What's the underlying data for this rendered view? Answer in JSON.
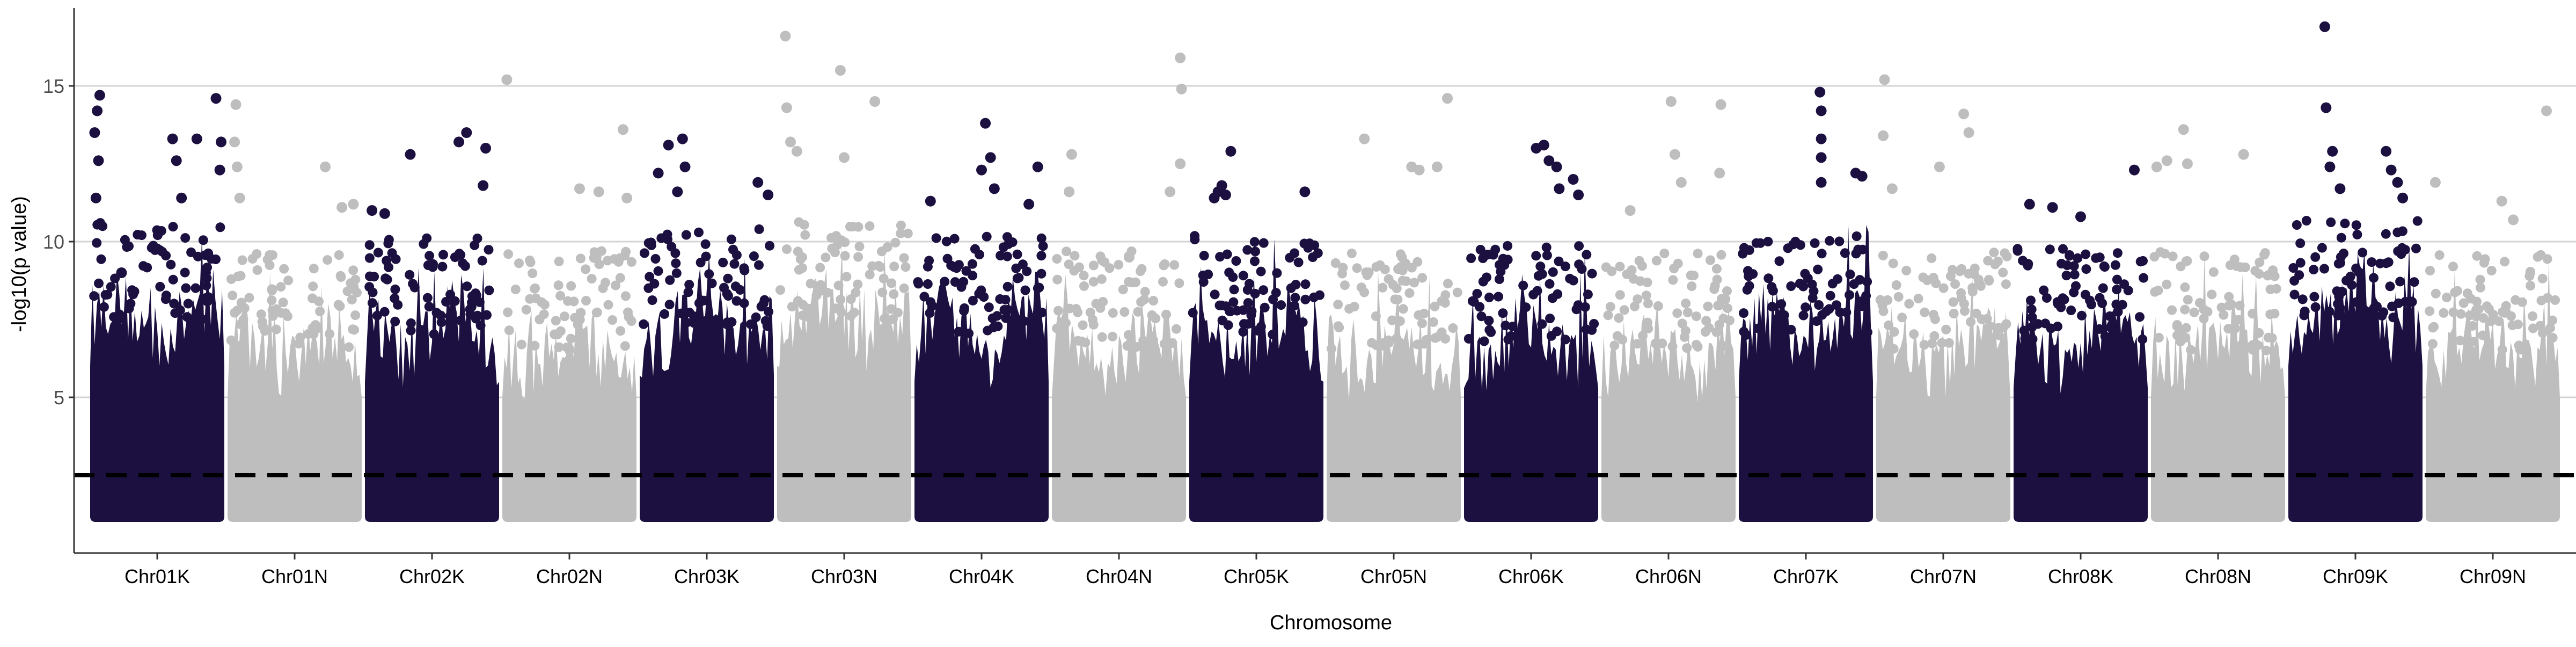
{
  "chart_data": {
    "type": "scatter",
    "subtype": "manhattan",
    "title": "",
    "xlabel": "Chromosome",
    "ylabel": "-log10(p value)",
    "ylim": [
      0,
      17.5
    ],
    "yticks": [
      5,
      10,
      15
    ],
    "grid": {
      "horizontal_major": true,
      "vertical": false
    },
    "threshold": {
      "value": 2.5,
      "style": "dashed",
      "color": "#000000"
    },
    "point_colors": {
      "K": "#1b1040",
      "N": "#bebebe"
    },
    "colors": {
      "grid": "#d4d4d4",
      "axis_text": "#4d4d4d",
      "axis_line": "#333333",
      "background": "#ffffff"
    },
    "categories": [
      "Chr01K",
      "Chr01N",
      "Chr02K",
      "Chr02N",
      "Chr03K",
      "Chr03N",
      "Chr04K",
      "Chr04N",
      "Chr05K",
      "Chr05N",
      "Chr06K",
      "Chr06N",
      "Chr07K",
      "Chr07N",
      "Chr08K",
      "Chr08N",
      "Chr09K",
      "Chr09N"
    ],
    "series": [
      {
        "chromosome": "Chr01K",
        "min_y": 1.0,
        "dense_top": 7.5,
        "outliers": [
          [
            0.01,
            13.5
          ],
          [
            0.03,
            14.2
          ],
          [
            0.05,
            14.7
          ],
          [
            0.04,
            12.6
          ],
          [
            0.02,
            11.4
          ],
          [
            0.22,
            9.0
          ],
          [
            0.62,
            13.3
          ],
          [
            0.65,
            12.6
          ],
          [
            0.69,
            11.4
          ],
          [
            0.81,
            13.3
          ],
          [
            0.96,
            14.6
          ],
          [
            0.99,
            12.3
          ],
          [
            1.0,
            13.2
          ]
        ]
      },
      {
        "chromosome": "Chr01N",
        "min_y": 1.0,
        "dense_top": 6.5,
        "outliers": [
          [
            0.04,
            14.4
          ],
          [
            0.03,
            13.2
          ],
          [
            0.05,
            12.4
          ],
          [
            0.07,
            11.4
          ],
          [
            0.74,
            12.4
          ],
          [
            0.87,
            11.1
          ],
          [
            0.96,
            11.2
          ]
        ]
      },
      {
        "chromosome": "Chr02K",
        "min_y": 1.0,
        "dense_top": 7.0,
        "outliers": [
          [
            0.03,
            11.0
          ],
          [
            0.13,
            10.9
          ],
          [
            0.33,
            12.8
          ],
          [
            0.71,
            13.2
          ],
          [
            0.77,
            13.5
          ],
          [
            0.92,
            13.0
          ],
          [
            0.9,
            11.8
          ]
        ]
      },
      {
        "chromosome": "Chr02N",
        "min_y": 1.0,
        "dense_top": 6.5,
        "outliers": [
          [
            0.01,
            15.2
          ],
          [
            0.58,
            11.7
          ],
          [
            0.73,
            11.6
          ],
          [
            0.92,
            13.6
          ],
          [
            0.95,
            11.4
          ]
        ]
      },
      {
        "chromosome": "Chr03K",
        "min_y": 1.0,
        "dense_top": 7.2,
        "outliers": [
          [
            0.12,
            12.2
          ],
          [
            0.2,
            13.1
          ],
          [
            0.31,
            13.3
          ],
          [
            0.33,
            12.4
          ],
          [
            0.27,
            11.6
          ],
          [
            0.9,
            11.9
          ],
          [
            0.98,
            11.5
          ]
        ]
      },
      {
        "chromosome": "Chr03N",
        "min_y": 1.0,
        "dense_top": 7.5,
        "outliers": [
          [
            0.04,
            16.6
          ],
          [
            0.05,
            14.3
          ],
          [
            0.08,
            13.2
          ],
          [
            0.13,
            12.9
          ],
          [
            0.47,
            15.5
          ],
          [
            0.5,
            12.7
          ],
          [
            0.74,
            14.5
          ]
        ]
      },
      {
        "chromosome": "Chr04K",
        "min_y": 1.0,
        "dense_top": 7.0,
        "outliers": [
          [
            0.1,
            11.3
          ],
          [
            0.5,
            12.3
          ],
          [
            0.53,
            13.8
          ],
          [
            0.57,
            12.7
          ],
          [
            0.6,
            11.7
          ],
          [
            0.87,
            11.2
          ],
          [
            0.94,
            12.4
          ]
        ]
      },
      {
        "chromosome": "Chr04N",
        "min_y": 1.0,
        "dense_top": 6.5,
        "outliers": [
          [
            0.13,
            12.8
          ],
          [
            0.11,
            11.6
          ],
          [
            0.58,
            9.5
          ],
          [
            0.98,
            15.9
          ],
          [
            0.99,
            14.9
          ],
          [
            0.98,
            12.5
          ],
          [
            0.9,
            11.6
          ]
        ]
      },
      {
        "chromosome": "Chr05K",
        "min_y": 1.0,
        "dense_top": 7.0,
        "outliers": [
          [
            0.17,
            11.4
          ],
          [
            0.2,
            11.6
          ],
          [
            0.23,
            11.8
          ],
          [
            0.3,
            12.9
          ],
          [
            0.26,
            11.5
          ],
          [
            0.88,
            11.6
          ]
        ]
      },
      {
        "chromosome": "Chr05N",
        "min_y": 1.0,
        "dense_top": 6.5,
        "outliers": [
          [
            0.27,
            13.3
          ],
          [
            0.64,
            12.4
          ],
          [
            0.7,
            12.3
          ],
          [
            0.84,
            12.4
          ],
          [
            0.92,
            14.6
          ]
        ]
      },
      {
        "chromosome": "Chr06K",
        "min_y": 1.0,
        "dense_top": 6.8,
        "outliers": [
          [
            0.54,
            13.0
          ],
          [
            0.6,
            13.1
          ],
          [
            0.64,
            12.6
          ],
          [
            0.7,
            12.4
          ],
          [
            0.72,
            11.7
          ],
          [
            0.83,
            12.0
          ],
          [
            0.87,
            11.5
          ]
        ]
      },
      {
        "chromosome": "Chr06N",
        "min_y": 1.0,
        "dense_top": 6.5,
        "outliers": [
          [
            0.2,
            11.0
          ],
          [
            0.52,
            14.5
          ],
          [
            0.55,
            12.8
          ],
          [
            0.6,
            11.9
          ],
          [
            0.91,
            14.4
          ],
          [
            0.9,
            12.2
          ]
        ]
      },
      {
        "chromosome": "Chr07K",
        "min_y": 1.0,
        "dense_top": 7.0,
        "outliers": [
          [
            0.61,
            14.8
          ],
          [
            0.62,
            14.2
          ],
          [
            0.62,
            13.3
          ],
          [
            0.62,
            12.7
          ],
          [
            0.62,
            11.9
          ],
          [
            0.89,
            12.2
          ],
          [
            0.94,
            12.1
          ]
        ]
      },
      {
        "chromosome": "Chr07N",
        "min_y": 1.0,
        "dense_top": 6.5,
        "outliers": [
          [
            0.04,
            15.2
          ],
          [
            0.03,
            13.4
          ],
          [
            0.1,
            11.7
          ],
          [
            0.47,
            12.4
          ],
          [
            0.66,
            14.1
          ],
          [
            0.7,
            13.5
          ]
        ]
      },
      {
        "chromosome": "Chr08K",
        "min_y": 1.0,
        "dense_top": 6.8,
        "outliers": [
          [
            0.1,
            11.2
          ],
          [
            0.28,
            11.1
          ],
          [
            0.5,
            10.8
          ],
          [
            0.92,
            12.3
          ]
        ]
      },
      {
        "chromosome": "Chr08N",
        "min_y": 1.0,
        "dense_top": 6.5,
        "outliers": [
          [
            0.02,
            12.4
          ],
          [
            0.1,
            12.6
          ],
          [
            0.23,
            13.6
          ],
          [
            0.26,
            12.5
          ],
          [
            0.7,
            12.8
          ]
        ]
      },
      {
        "chromosome": "Chr09K",
        "min_y": 1.0,
        "dense_top": 7.5,
        "outliers": [
          [
            0.26,
            16.9
          ],
          [
            0.27,
            14.3
          ],
          [
            0.32,
            12.9
          ],
          [
            0.3,
            12.4
          ],
          [
            0.38,
            11.7
          ],
          [
            0.74,
            12.9
          ],
          [
            0.78,
            12.3
          ],
          [
            0.83,
            11.9
          ],
          [
            0.87,
            11.4
          ]
        ]
      },
      {
        "chromosome": "Chr09N",
        "min_y": 1.0,
        "dense_top": 6.5,
        "outliers": [
          [
            0.05,
            11.9
          ],
          [
            0.57,
            11.3
          ],
          [
            0.66,
            10.7
          ],
          [
            0.92,
            14.2
          ]
        ]
      }
    ]
  }
}
